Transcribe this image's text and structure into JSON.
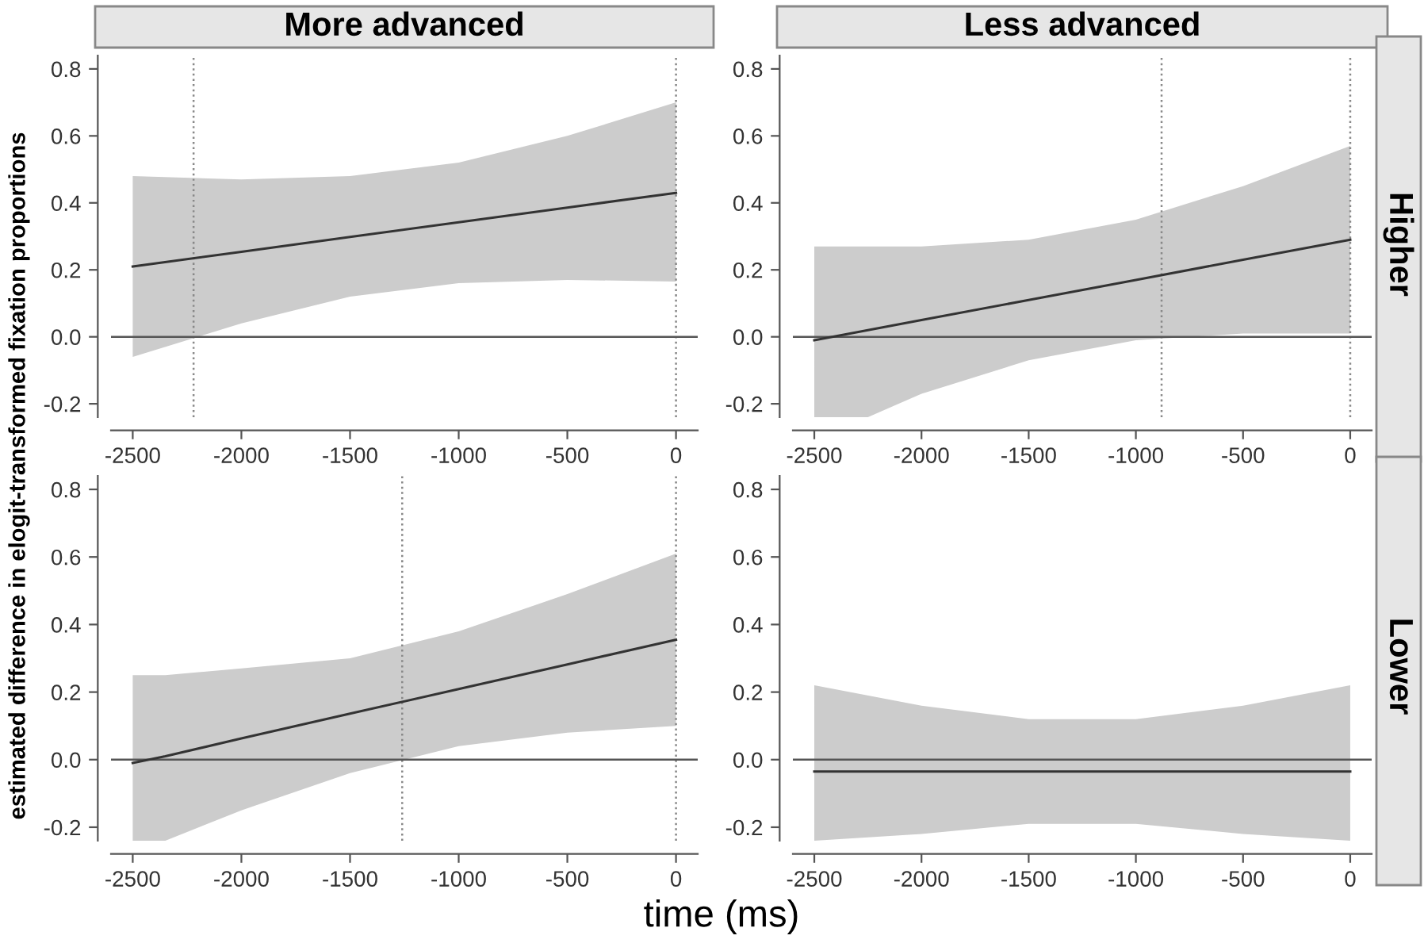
{
  "chart_data": [
    {
      "type": "line",
      "title": "More advanced",
      "ylabel": "estimated difference in elogit-transformed fixation proportions",
      "xlim": [
        -2600,
        100
      ],
      "ylim": [
        -0.24,
        0.84
      ],
      "xticks": [
        -2500,
        -2000,
        -1500,
        -1000,
        -500,
        0
      ],
      "yticks": [
        {
          "value": -0.2,
          "label": "-0.2"
        },
        {
          "value": 0,
          "label": "0.0"
        },
        {
          "value": 0.2,
          "label": "0.2"
        },
        {
          "value": 0.4,
          "label": "0.4"
        },
        {
          "value": 0.6,
          "label": "0.6"
        },
        {
          "value": 0.8,
          "label": "0.8"
        }
      ],
      "grid": false,
      "legend": false,
      "marker": "none",
      "line_style": "solid",
      "series": [
        {
          "color": "#333333",
          "x": [
            -2500,
            -2000,
            -1500,
            -1000,
            -500,
            0
          ],
          "values": [
            0.21,
            0.254,
            0.298,
            0.342,
            0.386,
            0.43
          ],
          "lower": [
            -0.06,
            0.04,
            0.12,
            0.16,
            0.17,
            0.165
          ],
          "upper": [
            0.48,
            0.47,
            0.48,
            0.52,
            0.6,
            0.7
          ]
        }
      ],
      "ref_lines": [
        {
          "axis": "x",
          "value": -2220,
          "line_style": "dotted",
          "color": "#888888"
        },
        {
          "axis": "x",
          "value": 0,
          "line_style": "dotted",
          "color": "#888888"
        },
        {
          "axis": "y",
          "value": 0,
          "line_style": "solid",
          "color": "#555555"
        }
      ]
    },
    {
      "type": "line",
      "title": "Less advanced",
      "y2label": "Higher",
      "xlim": [
        -2600,
        100
      ],
      "ylim": [
        -0.24,
        0.84
      ],
      "xticks": [
        -2500,
        -2000,
        -1500,
        -1000,
        -500,
        0
      ],
      "yticks": [
        {
          "value": -0.2,
          "label": "-0.2"
        },
        {
          "value": 0,
          "label": "0.0"
        },
        {
          "value": 0.2,
          "label": "0.2"
        },
        {
          "value": 0.4,
          "label": "0.4"
        },
        {
          "value": 0.6,
          "label": "0.6"
        },
        {
          "value": 0.8,
          "label": "0.8"
        }
      ],
      "grid": false,
      "legend": false,
      "marker": "none",
      "line_style": "solid",
      "series": [
        {
          "color": "#333333",
          "x": [
            -2500,
            -2250,
            -2000,
            -1500,
            -1000,
            -500,
            0
          ],
          "values": [
            -0.01,
            0.02,
            0.05,
            0.11,
            0.17,
            0.23,
            0.29
          ],
          "lower": [
            -0.24,
            -0.24,
            -0.17,
            -0.07,
            -0.01,
            0.01,
            0.01
          ],
          "upper": [
            0.27,
            0.27,
            0.27,
            0.29,
            0.35,
            0.45,
            0.57
          ]
        }
      ],
      "ref_lines": [
        {
          "axis": "x",
          "value": -880,
          "line_style": "dotted",
          "color": "#888888"
        },
        {
          "axis": "x",
          "value": 0,
          "line_style": "dotted",
          "color": "#888888"
        },
        {
          "axis": "y",
          "value": 0,
          "line_style": "solid",
          "color": "#555555"
        }
      ]
    },
    {
      "type": "line",
      "xlabel": "time (ms)",
      "xlim": [
        -2600,
        100
      ],
      "ylim": [
        -0.24,
        0.84
      ],
      "xticks": [
        -2500,
        -2000,
        -1500,
        -1000,
        -500,
        0
      ],
      "yticks": [
        {
          "value": -0.2,
          "label": "-0.2"
        },
        {
          "value": 0,
          "label": "0.0"
        },
        {
          "value": 0.2,
          "label": "0.2"
        },
        {
          "value": 0.4,
          "label": "0.4"
        },
        {
          "value": 0.6,
          "label": "0.6"
        },
        {
          "value": 0.8,
          "label": "0.8"
        }
      ],
      "grid": false,
      "legend": false,
      "marker": "none",
      "line_style": "solid",
      "series": [
        {
          "color": "#333333",
          "x": [
            -2500,
            -2350,
            -2000,
            -1500,
            -1000,
            -500,
            0
          ],
          "values": [
            -0.01,
            0.01,
            0.063,
            0.136,
            0.209,
            0.282,
            0.355
          ],
          "lower": [
            -0.24,
            -0.24,
            -0.15,
            -0.04,
            0.04,
            0.08,
            0.1
          ],
          "upper": [
            0.25,
            0.25,
            0.27,
            0.3,
            0.38,
            0.49,
            0.61
          ]
        }
      ],
      "ref_lines": [
        {
          "axis": "x",
          "value": -1260,
          "line_style": "dotted",
          "color": "#888888"
        },
        {
          "axis": "x",
          "value": 0,
          "line_style": "dotted",
          "color": "#888888"
        },
        {
          "axis": "y",
          "value": 0,
          "line_style": "solid",
          "color": "#555555"
        }
      ]
    },
    {
      "type": "line",
      "y2label": "Lower",
      "xlim": [
        -2600,
        100
      ],
      "ylim": [
        -0.24,
        0.84
      ],
      "xticks": [
        -2500,
        -2000,
        -1500,
        -1000,
        -500,
        0
      ],
      "yticks": [
        {
          "value": -0.2,
          "label": "-0.2"
        },
        {
          "value": 0,
          "label": "0.0"
        },
        {
          "value": 0.2,
          "label": "0.2"
        },
        {
          "value": 0.4,
          "label": "0.4"
        },
        {
          "value": 0.6,
          "label": "0.6"
        },
        {
          "value": 0.8,
          "label": "0.8"
        }
      ],
      "grid": false,
      "legend": false,
      "marker": "none",
      "line_style": "solid",
      "series": [
        {
          "color": "#333333",
          "x": [
            -2500,
            -2000,
            -1500,
            -1000,
            -500,
            0
          ],
          "values": [
            -0.035,
            -0.035,
            -0.035,
            -0.035,
            -0.035,
            -0.035
          ],
          "lower": [
            -0.24,
            -0.22,
            -0.19,
            -0.19,
            -0.22,
            -0.24
          ],
          "upper": [
            0.22,
            0.16,
            0.12,
            0.12,
            0.16,
            0.22
          ]
        }
      ],
      "ref_lines": [
        {
          "axis": "y",
          "value": 0,
          "line_style": "solid",
          "color": "#555555"
        }
      ]
    }
  ]
}
